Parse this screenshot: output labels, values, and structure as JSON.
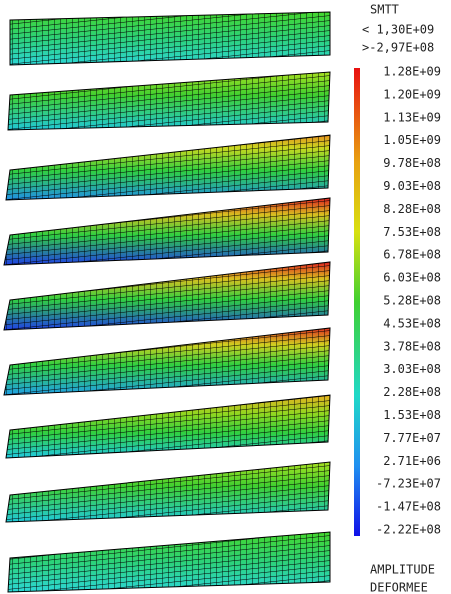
{
  "legend": {
    "title": "SMTT",
    "max": "< 1,30E+09",
    "min": ">-2,97E+08",
    "scale_labels": [
      "1.28E+09",
      "1.20E+09",
      "1.13E+09",
      "1.05E+09",
      "9.78E+08",
      "9.03E+08",
      "8.28E+08",
      "7.53E+08",
      "6.78E+08",
      "6.03E+08",
      "5.28E+08",
      "4.53E+08",
      "3.78E+08",
      "3.03E+08",
      "2.28E+08",
      "1.53E+08",
      "7.77E+07",
      "2.71E+06",
      "-7.23E+07",
      "-1.47E+08",
      "-2.22E+08"
    ]
  },
  "footer": [
    "AMPLITUDE",
    "DEFORMEE"
  ]
}
